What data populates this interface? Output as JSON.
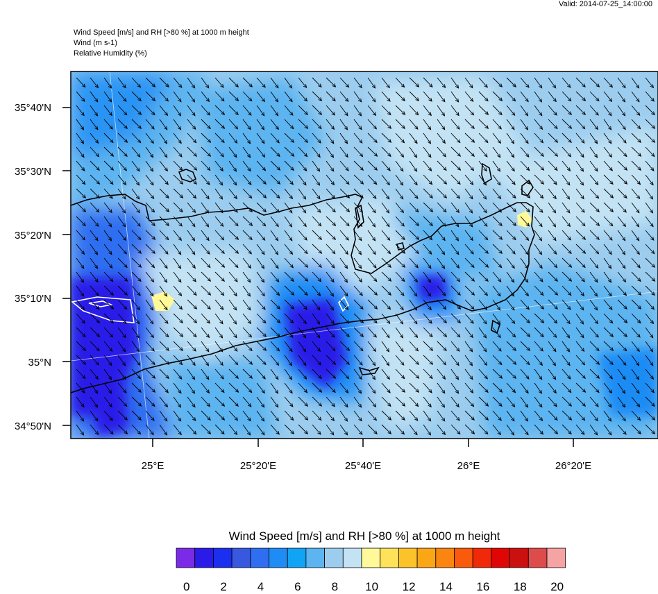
{
  "valid_time": "Valid: 2014-07-25_14:00:00",
  "header_lines": [
    "Wind Speed [m/s] and RH [>80 %] at 1000 m height",
    "Wind   (m s-1)",
    "Relative Humidity   (%)"
  ],
  "lat_labels": [
    "35°40'N",
    "35°30'N",
    "35°20'N",
    "35°10'N",
    "35°N",
    "34°50'N"
  ],
  "lon_labels": [
    "25°E",
    "25°20'E",
    "25°40'E",
    "26°E",
    "26°20'E"
  ],
  "colorbar": {
    "title": "Wind Speed [m/s] and RH [>80 %] at 1000 m height",
    "tick_labels": [
      "0",
      "2",
      "4",
      "6",
      "8",
      "10",
      "12",
      "14",
      "16",
      "18",
      "20"
    ],
    "colors": [
      "#7b2be8",
      "#2b1be8",
      "#1b2fee",
      "#3858e0",
      "#2f6ef0",
      "#1e8cf5",
      "#11a4f5",
      "#5cb4f0",
      "#9ccdef",
      "#c3e3f4",
      "#fff99a",
      "#fde25a",
      "#fcc22a",
      "#fba715",
      "#fa8510",
      "#f95a0c",
      "#f02a08",
      "#e00606",
      "#cc1010",
      "#dd4b4b",
      "#f5a3a3"
    ]
  },
  "wind_direction": "northwest to southeast"
}
